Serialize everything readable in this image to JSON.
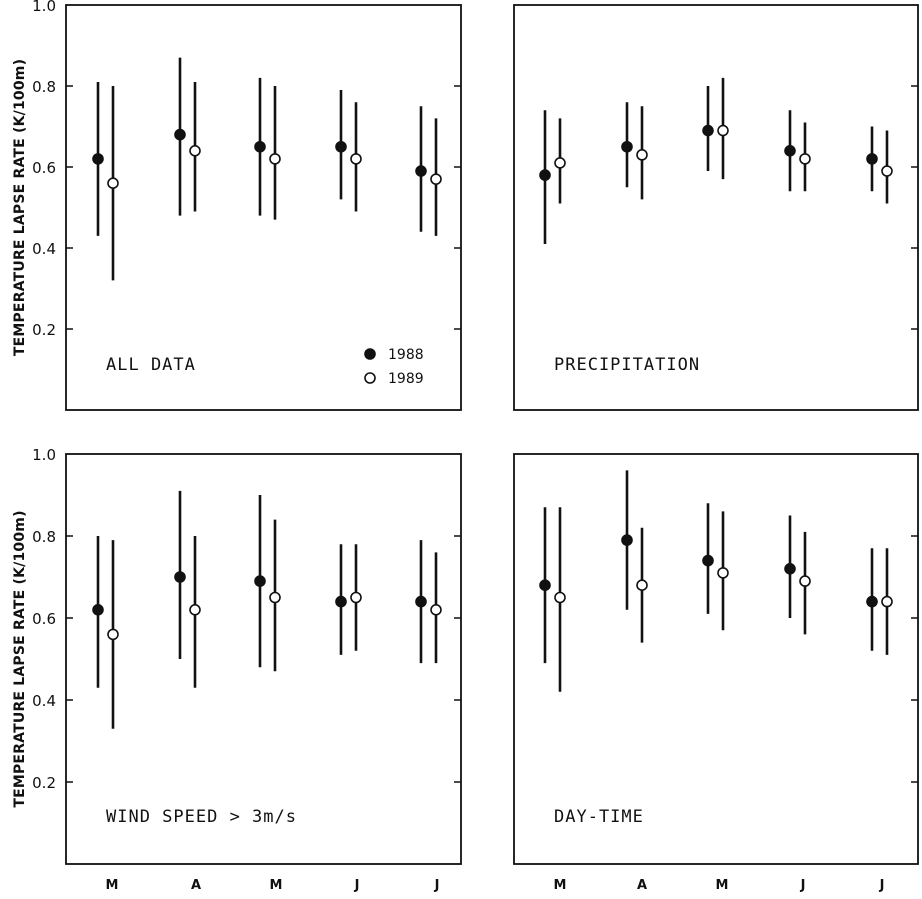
{
  "chart_data": [
    {
      "type": "scatter",
      "panel_title": "ALL DATA",
      "ylabel": "TEMPERATURE LAPSE RATE (K/100m)",
      "ylim": [
        0.0,
        1.0
      ],
      "yticks": [
        "0.2",
        "0.4",
        "0.6",
        "0.8",
        "1.0"
      ],
      "categories": [
        "M",
        "A",
        "M",
        "J",
        "J"
      ],
      "legend": [
        "1988",
        "1989"
      ],
      "series": [
        {
          "name": "1988",
          "values": [
            0.62,
            0.68,
            0.65,
            0.65,
            0.59
          ],
          "lower": [
            0.43,
            0.48,
            0.48,
            0.52,
            0.44
          ],
          "upper": [
            0.81,
            0.87,
            0.82,
            0.79,
            0.75
          ]
        },
        {
          "name": "1989",
          "values": [
            0.56,
            0.64,
            0.62,
            0.62,
            0.57
          ],
          "lower": [
            0.32,
            0.49,
            0.47,
            0.49,
            0.43
          ],
          "upper": [
            0.8,
            0.81,
            0.8,
            0.76,
            0.72
          ]
        }
      ]
    },
    {
      "type": "scatter",
      "panel_title": "PRECIPITATION",
      "ylim": [
        0.0,
        1.0
      ],
      "categories": [
        "M",
        "A",
        "M",
        "J",
        "J"
      ],
      "series": [
        {
          "name": "1988",
          "values": [
            0.58,
            0.65,
            0.69,
            0.64,
            0.62
          ],
          "lower": [
            0.41,
            0.55,
            0.59,
            0.54,
            0.54
          ],
          "upper": [
            0.74,
            0.76,
            0.8,
            0.74,
            0.7
          ]
        },
        {
          "name": "1989",
          "values": [
            0.61,
            0.63,
            0.69,
            0.62,
            0.59
          ],
          "lower": [
            0.51,
            0.52,
            0.57,
            0.54,
            0.51
          ],
          "upper": [
            0.72,
            0.75,
            0.82,
            0.71,
            0.69
          ]
        }
      ]
    },
    {
      "type": "scatter",
      "panel_title": "WIND SPEED > 3m/s",
      "ylabel": "TEMPERATURE LAPSE RATE (K/100m)",
      "ylim": [
        0.0,
        1.0
      ],
      "yticks": [
        "0.2",
        "0.4",
        "0.6",
        "0.8",
        "1.0"
      ],
      "categories": [
        "M",
        "A",
        "M",
        "J",
        "J"
      ],
      "series": [
        {
          "name": "1988",
          "values": [
            0.62,
            0.7,
            0.69,
            0.64,
            0.64
          ],
          "lower": [
            0.43,
            0.5,
            0.48,
            0.51,
            0.49
          ],
          "upper": [
            0.8,
            0.91,
            0.9,
            0.78,
            0.79
          ]
        },
        {
          "name": "1989",
          "values": [
            0.56,
            0.62,
            0.65,
            0.65,
            0.62
          ],
          "lower": [
            0.33,
            0.43,
            0.47,
            0.52,
            0.49
          ],
          "upper": [
            0.79,
            0.8,
            0.84,
            0.78,
            0.76
          ]
        }
      ]
    },
    {
      "type": "scatter",
      "panel_title": "DAY-TIME",
      "ylim": [
        0.0,
        1.0
      ],
      "categories": [
        "M",
        "A",
        "M",
        "J",
        "J"
      ],
      "series": [
        {
          "name": "1988",
          "values": [
            0.68,
            0.79,
            0.74,
            0.72,
            0.64
          ],
          "lower": [
            0.49,
            0.62,
            0.61,
            0.6,
            0.52
          ],
          "upper": [
            0.87,
            0.96,
            0.88,
            0.85,
            0.77
          ]
        },
        {
          "name": "1989",
          "values": [
            0.65,
            0.68,
            0.71,
            0.69,
            0.64
          ],
          "lower": [
            0.42,
            0.54,
            0.57,
            0.56,
            0.51
          ],
          "upper": [
            0.87,
            0.82,
            0.86,
            0.81,
            0.77
          ]
        }
      ]
    }
  ]
}
